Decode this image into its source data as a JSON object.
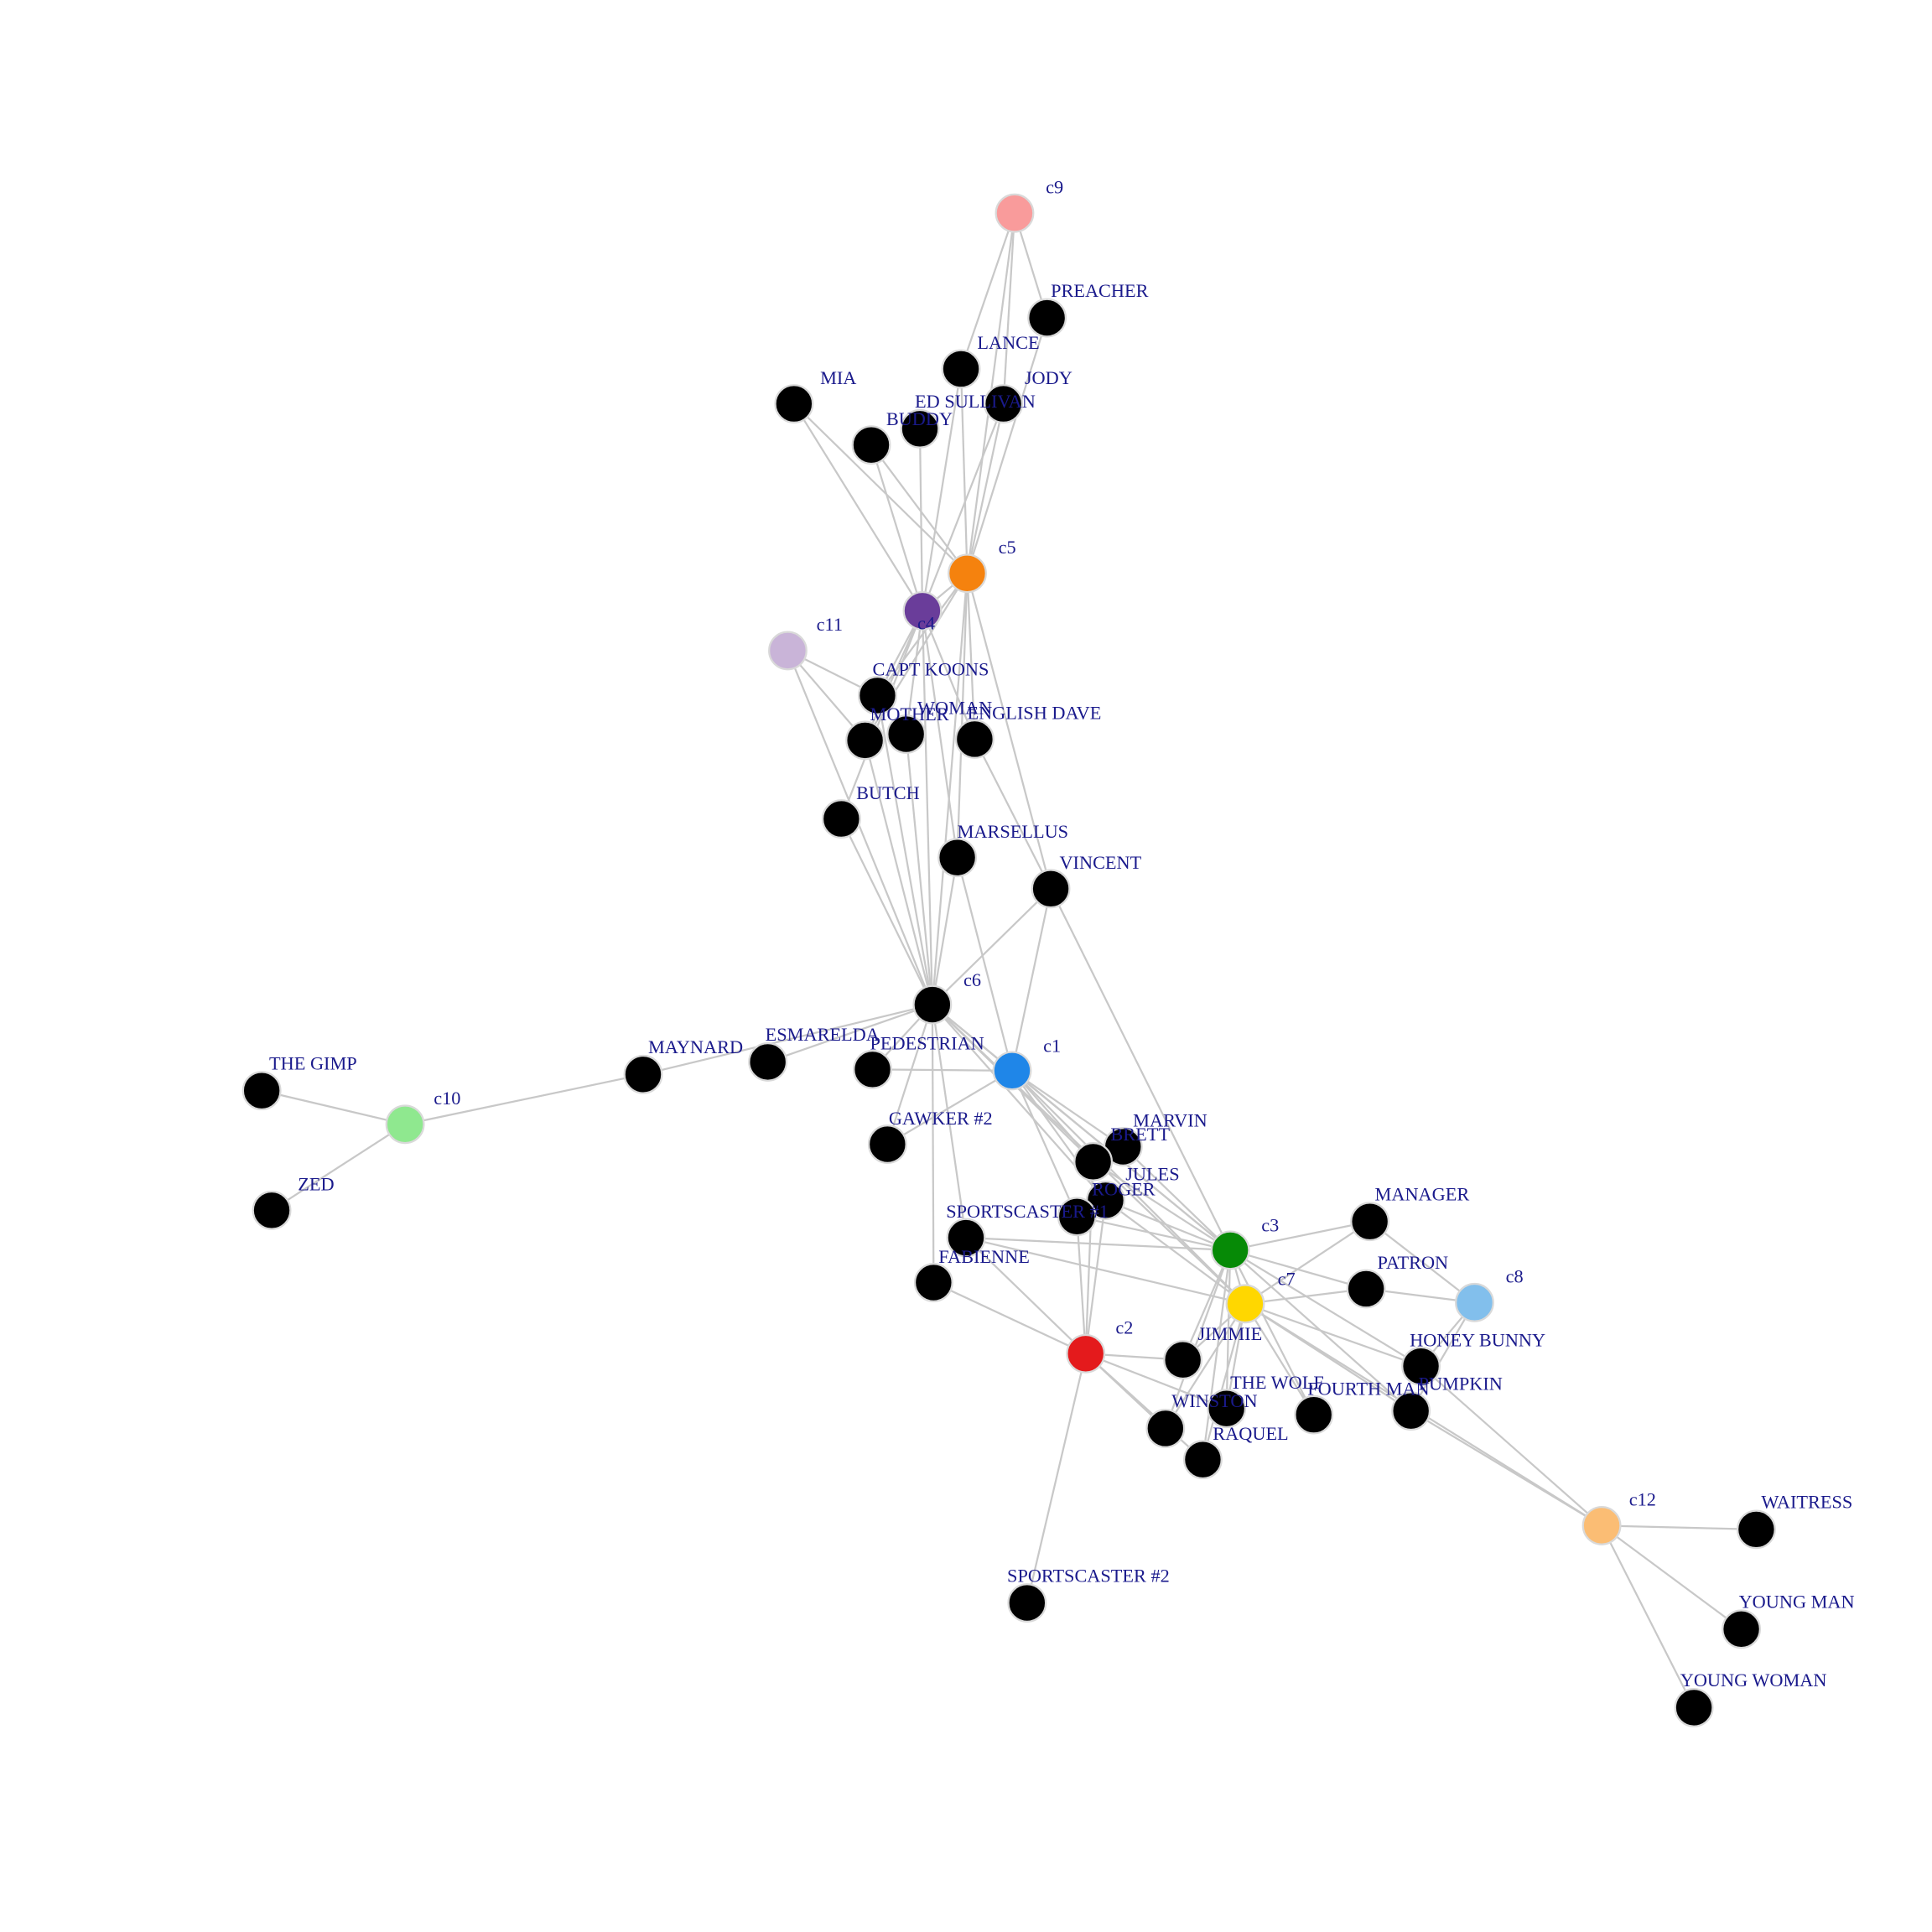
{
  "colors": {
    "edge": "#c8c8c8",
    "label": "#1a1a8c",
    "character_node": "#000000"
  },
  "nodes": [
    {
      "id": "c9",
      "label": "c9",
      "color": "#f99b9b",
      "kind": "cluster"
    },
    {
      "id": "c5",
      "label": "c5",
      "color": "#f5820e",
      "kind": "cluster"
    },
    {
      "id": "c4",
      "label": "c4",
      "color": "#6a3d9a",
      "kind": "cluster"
    },
    {
      "id": "c11",
      "label": "c11",
      "color": "#c9b4d8",
      "kind": "cluster"
    },
    {
      "id": "c6",
      "label": "c6",
      "color": "#000000",
      "kind": "cluster"
    },
    {
      "id": "c1",
      "label": "c1",
      "color": "#1f86e8",
      "kind": "cluster"
    },
    {
      "id": "c10",
      "label": "c10",
      "color": "#8fe88f",
      "kind": "cluster"
    },
    {
      "id": "c3",
      "label": "c3",
      "color": "#068a06",
      "kind": "cluster"
    },
    {
      "id": "c7",
      "label": "c7",
      "color": "#ffd700",
      "kind": "cluster"
    },
    {
      "id": "c8",
      "label": "c8",
      "color": "#82bfec",
      "kind": "cluster"
    },
    {
      "id": "c2",
      "label": "c2",
      "color": "#e41a1c",
      "kind": "cluster"
    },
    {
      "id": "c12",
      "label": "c12",
      "color": "#fbbd74",
      "kind": "cluster"
    },
    {
      "id": "PREACHER",
      "label": "PREACHER",
      "color": "#000000"
    },
    {
      "id": "LANCE",
      "label": "LANCE",
      "color": "#000000"
    },
    {
      "id": "JODY",
      "label": "JODY",
      "color": "#000000"
    },
    {
      "id": "MIA",
      "label": "MIA",
      "color": "#000000"
    },
    {
      "id": "ED SULLIVAN",
      "label": "ED SULLIVAN",
      "color": "#000000"
    },
    {
      "id": "BUDDY",
      "label": "BUDDY",
      "color": "#000000"
    },
    {
      "id": "CAPT KOONS",
      "label": "CAPT KOONS",
      "color": "#000000"
    },
    {
      "id": "WOMAN",
      "label": "WOMAN",
      "color": "#000000"
    },
    {
      "id": "MOTHER",
      "label": "MOTHER",
      "color": "#000000"
    },
    {
      "id": "ENGLISH DAVE",
      "label": "ENGLISH DAVE",
      "color": "#000000"
    },
    {
      "id": "BUTCH",
      "label": "BUTCH",
      "color": "#000000"
    },
    {
      "id": "MARSELLUS",
      "label": "MARSELLUS",
      "color": "#000000"
    },
    {
      "id": "VINCENT",
      "label": "VINCENT",
      "color": "#000000"
    },
    {
      "id": "ESMARELDA",
      "label": "ESMARELDA",
      "color": "#000000"
    },
    {
      "id": "MAYNARD",
      "label": "MAYNARD",
      "color": "#000000"
    },
    {
      "id": "PEDESTRIAN",
      "label": "PEDESTRIAN",
      "color": "#000000"
    },
    {
      "id": "THE GIMP",
      "label": "THE GIMP",
      "color": "#000000"
    },
    {
      "id": "ZED",
      "label": "ZED",
      "color": "#000000"
    },
    {
      "id": "GAWKER #2",
      "label": "GAWKER #2",
      "color": "#000000"
    },
    {
      "id": "MARVIN",
      "label": "MARVIN",
      "color": "#000000"
    },
    {
      "id": "BRETT",
      "label": "BRETT",
      "color": "#000000"
    },
    {
      "id": "JULES",
      "label": "JULES",
      "color": "#000000"
    },
    {
      "id": "ROGER",
      "label": "ROGER",
      "color": "#000000"
    },
    {
      "id": "SPORTSCASTER #1",
      "label": "SPORTSCASTER #1",
      "color": "#000000"
    },
    {
      "id": "FABIENNE",
      "label": "FABIENNE",
      "color": "#000000"
    },
    {
      "id": "MANAGER",
      "label": "MANAGER",
      "color": "#000000"
    },
    {
      "id": "PATRON",
      "label": "PATRON",
      "color": "#000000"
    },
    {
      "id": "JIMMIE",
      "label": "JIMMIE",
      "color": "#000000"
    },
    {
      "id": "HONEY BUNNY",
      "label": "HONEY BUNNY",
      "color": "#000000"
    },
    {
      "id": "THE WOLF",
      "label": "THE WOLF",
      "color": "#000000"
    },
    {
      "id": "FOURTH MAN",
      "label": "FOURTH MAN",
      "color": "#000000"
    },
    {
      "id": "PUMPKIN",
      "label": "PUMPKIN",
      "color": "#000000"
    },
    {
      "id": "WINSTON",
      "label": "WINSTON",
      "color": "#000000"
    },
    {
      "id": "RAQUEL",
      "label": "RAQUEL",
      "color": "#000000"
    },
    {
      "id": "SPORTSCASTER #2",
      "label": "SPORTSCASTER #2",
      "color": "#000000"
    },
    {
      "id": "WAITRESS",
      "label": "WAITRESS",
      "color": "#000000"
    },
    {
      "id": "YOUNG MAN",
      "label": "YOUNG MAN",
      "color": "#000000"
    },
    {
      "id": "YOUNG WOMAN",
      "label": "YOUNG WOMAN",
      "color": "#000000"
    }
  ],
  "edges": [
    [
      "c9",
      "PREACHER"
    ],
    [
      "c9",
      "LANCE"
    ],
    [
      "c9",
      "JODY"
    ],
    [
      "c9",
      "c5"
    ],
    [
      "PREACHER",
      "c5"
    ],
    [
      "LANCE",
      "c4"
    ],
    [
      "LANCE",
      "c5"
    ],
    [
      "JODY",
      "c4"
    ],
    [
      "JODY",
      "c5"
    ],
    [
      "MIA",
      "c4"
    ],
    [
      "ED SULLIVAN",
      "c4"
    ],
    [
      "BUDDY",
      "c4"
    ],
    [
      "BUDDY",
      "c5"
    ],
    [
      "MIA",
      "c5"
    ],
    [
      "c4",
      "c5"
    ],
    [
      "c4",
      "CAPT KOONS"
    ],
    [
      "c4",
      "WOMAN"
    ],
    [
      "c4",
      "MOTHER"
    ],
    [
      "c4",
      "ENGLISH DAVE"
    ],
    [
      "c4",
      "BUTCH"
    ],
    [
      "c4",
      "MARSELLUS"
    ],
    [
      "c4",
      "c6"
    ],
    [
      "c5",
      "CAPT KOONS"
    ],
    [
      "c5",
      "MOTHER"
    ],
    [
      "c5",
      "ENGLISH DAVE"
    ],
    [
      "c5",
      "MARSELLUS"
    ],
    [
      "c5",
      "VINCENT"
    ],
    [
      "c5",
      "c6"
    ],
    [
      "c11",
      "CAPT KOONS"
    ],
    [
      "c11",
      "MOTHER"
    ],
    [
      "c11",
      "c6"
    ],
    [
      "CAPT KOONS",
      "c6"
    ],
    [
      "MOTHER",
      "c6"
    ],
    [
      "WOMAN",
      "c6"
    ],
    [
      "BUTCH",
      "c6"
    ],
    [
      "MARSELLUS",
      "c6"
    ],
    [
      "MARSELLUS",
      "c1"
    ],
    [
      "ENGLISH DAVE",
      "VINCENT"
    ],
    [
      "VINCENT",
      "c6"
    ],
    [
      "VINCENT",
      "c1"
    ],
    [
      "VINCENT",
      "c3"
    ],
    [
      "c6",
      "ESMARELDA"
    ],
    [
      "c6",
      "MAYNARD"
    ],
    [
      "c6",
      "PEDESTRIAN"
    ],
    [
      "c6",
      "GAWKER #2"
    ],
    [
      "c6",
      "c1"
    ],
    [
      "c6",
      "BRETT"
    ],
    [
      "c6",
      "JULES"
    ],
    [
      "c6",
      "SPORTSCASTER #1"
    ],
    [
      "c6",
      "FABIENNE"
    ],
    [
      "c6",
      "c3"
    ],
    [
      "c6",
      "c7"
    ],
    [
      "MAYNARD",
      "c10"
    ],
    [
      "c10",
      "THE GIMP"
    ],
    [
      "c10",
      "ZED"
    ],
    [
      "PEDESTRIAN",
      "c1"
    ],
    [
      "GAWKER #2",
      "c1"
    ],
    [
      "c1",
      "MARVIN"
    ],
    [
      "c1",
      "BRETT"
    ],
    [
      "c1",
      "JULES"
    ],
    [
      "c1",
      "ROGER"
    ],
    [
      "c1",
      "c3"
    ],
    [
      "c1",
      "c7"
    ],
    [
      "MARVIN",
      "c3"
    ],
    [
      "BRETT",
      "c3"
    ],
    [
      "JULES",
      "c3"
    ],
    [
      "JULES",
      "c7"
    ],
    [
      "ROGER",
      "c3"
    ],
    [
      "SPORTSCASTER #1",
      "c3"
    ],
    [
      "SPORTSCASTER #1",
      "c7"
    ],
    [
      "SPORTSCASTER #1",
      "c2"
    ],
    [
      "FABIENNE",
      "c2"
    ],
    [
      "BRETT",
      "c2"
    ],
    [
      "JULES",
      "c2"
    ],
    [
      "ROGER",
      "c2"
    ],
    [
      "c3",
      "MANAGER"
    ],
    [
      "c3",
      "PATRON"
    ],
    [
      "c3",
      "c7"
    ],
    [
      "c3",
      "JIMMIE"
    ],
    [
      "c3",
      "THE WOLF"
    ],
    [
      "c3",
      "WINSTON"
    ],
    [
      "c3",
      "RAQUEL"
    ],
    [
      "c3",
      "HONEY BUNNY"
    ],
    [
      "c3",
      "PUMPKIN"
    ],
    [
      "c3",
      "FOURTH MAN"
    ],
    [
      "MANAGER",
      "c8"
    ],
    [
      "MANAGER",
      "c7"
    ],
    [
      "PATRON",
      "c7"
    ],
    [
      "PATRON",
      "c8"
    ],
    [
      "c7",
      "HONEY BUNNY"
    ],
    [
      "c7",
      "PUMPKIN"
    ],
    [
      "c7",
      "c12"
    ],
    [
      "c7",
      "THE WOLF"
    ],
    [
      "c7",
      "JIMMIE"
    ],
    [
      "c7",
      "WINSTON"
    ],
    [
      "c7",
      "RAQUEL"
    ],
    [
      "c7",
      "FOURTH MAN"
    ],
    [
      "HONEY BUNNY",
      "c8"
    ],
    [
      "PUMPKIN",
      "c8"
    ],
    [
      "HONEY BUNNY",
      "c12"
    ],
    [
      "PUMPKIN",
      "c12"
    ],
    [
      "c2",
      "JIMMIE"
    ],
    [
      "c2",
      "THE WOLF"
    ],
    [
      "c2",
      "WINSTON"
    ],
    [
      "c2",
      "RAQUEL"
    ],
    [
      "c2",
      "SPORTSCASTER #2"
    ],
    [
      "c12",
      "WAITRESS"
    ],
    [
      "c12",
      "YOUNG MAN"
    ],
    [
      "c12",
      "YOUNG WOMAN"
    ]
  ]
}
